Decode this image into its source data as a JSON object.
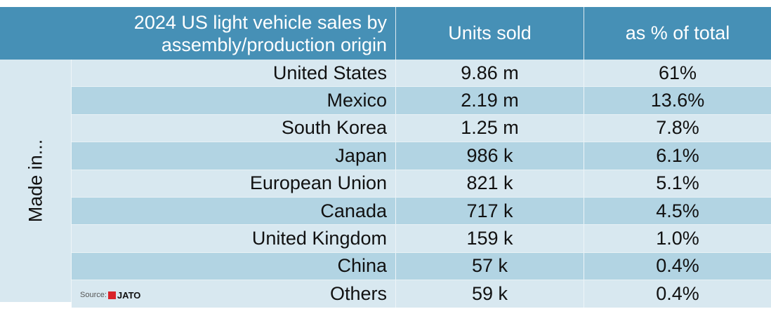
{
  "header": {
    "title": "2024 US light vehicle sales by assembly/production origin",
    "title_line1": "2024 US light vehicle sales by",
    "title_line2": "assembly/production origin",
    "units": "Units sold",
    "pct": "as % of total"
  },
  "side_label": "Made in...",
  "rows": [
    {
      "origin": "United States",
      "units": "9.86 m",
      "pct": "61%"
    },
    {
      "origin": "Mexico",
      "units": "2.19 m",
      "pct": "13.6%"
    },
    {
      "origin": "South Korea",
      "units": "1.25 m",
      "pct": "7.8%"
    },
    {
      "origin": "Japan",
      "units": "986 k",
      "pct": "6.1%"
    },
    {
      "origin": "European Union",
      "units": "821 k",
      "pct": "5.1%"
    },
    {
      "origin": "Canada",
      "units": "717 k",
      "pct": "4.5%"
    },
    {
      "origin": "United Kingdom",
      "units": "159 k",
      "pct": "1.0%"
    },
    {
      "origin": "China",
      "units": "57 k",
      "pct": "0.4%"
    },
    {
      "origin": "Others",
      "units": "59 k",
      "pct": "0.4%"
    }
  ],
  "source": {
    "label": "Source:",
    "logo": "JATO"
  },
  "colors": {
    "header": "#4690b6",
    "row_light": "#d8e8f0",
    "row_dark": "#b2d4e3",
    "logo_red": "#d9242a"
  }
}
